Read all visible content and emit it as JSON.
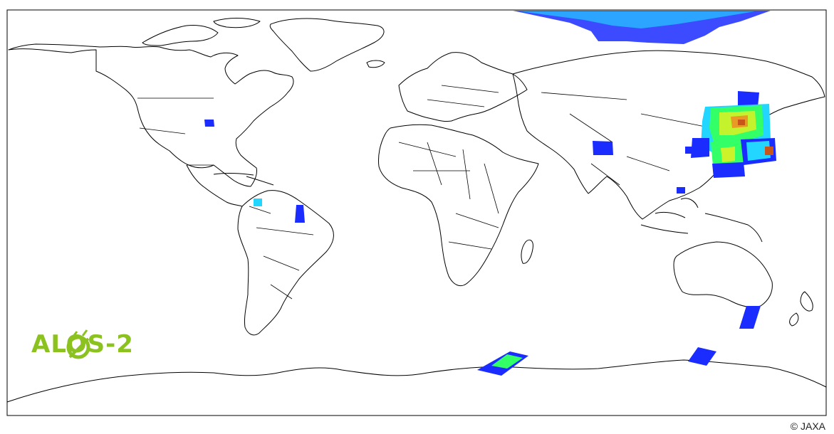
{
  "logo": {
    "text": "ALOS-2",
    "color": "#8cc21f"
  },
  "credit": "© JAXA",
  "colors": {
    "frame": "#000000",
    "swath_low": "#1a2cff",
    "swath_mid": "#22d6ff",
    "swath_green": "#33ff66",
    "swath_yellow": "#e8f020",
    "swath_high": "#f08a22",
    "swath_max": "#c8561a"
  },
  "observation_regions": [
    "north-polar-arctic",
    "united-states-central",
    "north-india",
    "japan-east-asia",
    "south-china",
    "colombia-venezuela",
    "brazil-amazon-mouth",
    "tasmania",
    "antarctica-west",
    "antarctica-east"
  ]
}
